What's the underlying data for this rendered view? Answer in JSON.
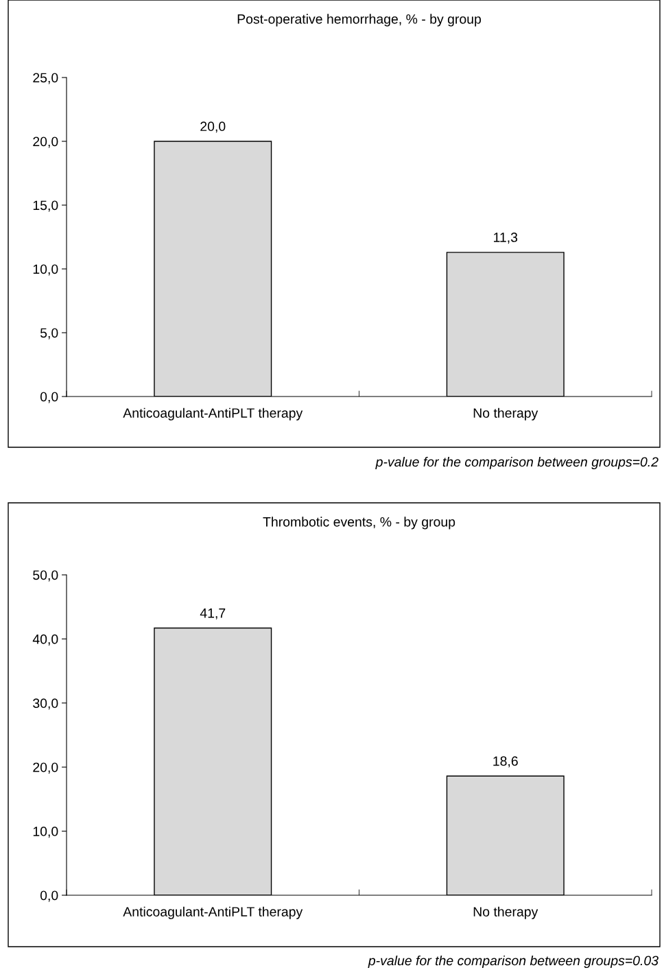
{
  "chart_data": [
    {
      "type": "bar",
      "title": "Post-operative hemorrhage, % - by group",
      "categories": [
        "Anticoagulant-AntiPLT therapy",
        "No therapy"
      ],
      "values": [
        20.0,
        11.3
      ],
      "value_labels": [
        "20,0",
        "11,3"
      ],
      "color": "#d9d9d9",
      "ylim": [
        0,
        25
      ],
      "yticks": [
        {
          "value": 0,
          "label": "0,0"
        },
        {
          "value": 5,
          "label": "5,0"
        },
        {
          "value": 10,
          "label": "10,0"
        },
        {
          "value": 15,
          "label": "15,0"
        },
        {
          "value": 20,
          "label": "20,0"
        },
        {
          "value": 25,
          "label": "25,0"
        }
      ],
      "grid": false,
      "legend": false,
      "annotations": [
        "p-value for the comparison between groups=0.2"
      ]
    },
    {
      "type": "bar",
      "title": "Thrombotic events, % - by group",
      "categories": [
        "Anticoagulant-AntiPLT therapy",
        "No therapy"
      ],
      "values": [
        41.7,
        18.6
      ],
      "value_labels": [
        "41,7",
        "18,6"
      ],
      "color": "#d9d9d9",
      "ylim": [
        0,
        50
      ],
      "yticks": [
        {
          "value": 0,
          "label": "0,0"
        },
        {
          "value": 10,
          "label": "10,0"
        },
        {
          "value": 20,
          "label": "20,0"
        },
        {
          "value": 30,
          "label": "30,0"
        },
        {
          "value": 40,
          "label": "40,0"
        },
        {
          "value": 50,
          "label": "50,0"
        }
      ],
      "grid": false,
      "legend": false,
      "annotations": [
        "p-value for the comparison between groups=0.03"
      ]
    }
  ]
}
